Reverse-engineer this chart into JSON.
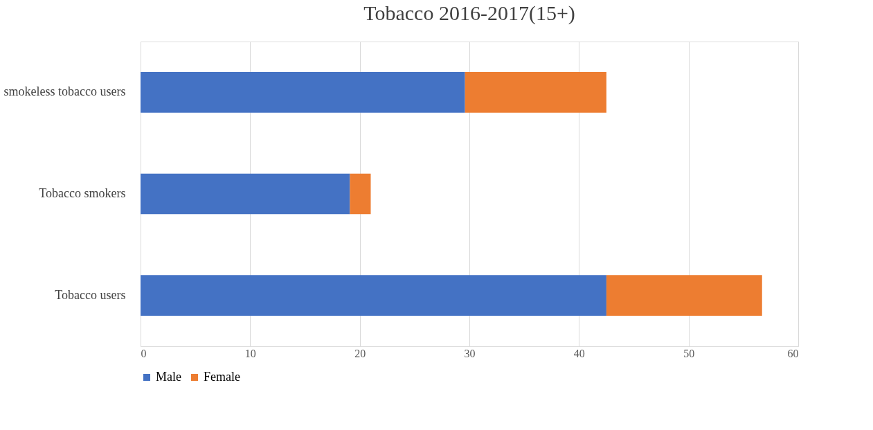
{
  "chart_data": {
    "type": "bar",
    "title": "Tobacco 2016-2017(15+)",
    "orientation": "horizontal",
    "stacked": true,
    "categories": [
      "smokeless tobacco users",
      "Tobacco smokers",
      "Tobacco users"
    ],
    "series": [
      {
        "name": "Male",
        "color": "#4472c4",
        "values": [
          29.6,
          19.1,
          42.5
        ]
      },
      {
        "name": "Female",
        "color": "#ed7d31",
        "values": [
          12.9,
          1.9,
          14.2
        ]
      }
    ],
    "xlim": [
      0,
      60
    ],
    "xticks": [
      0,
      10,
      20,
      30,
      40,
      50,
      60
    ],
    "grid": "x",
    "legend": "bottom"
  }
}
